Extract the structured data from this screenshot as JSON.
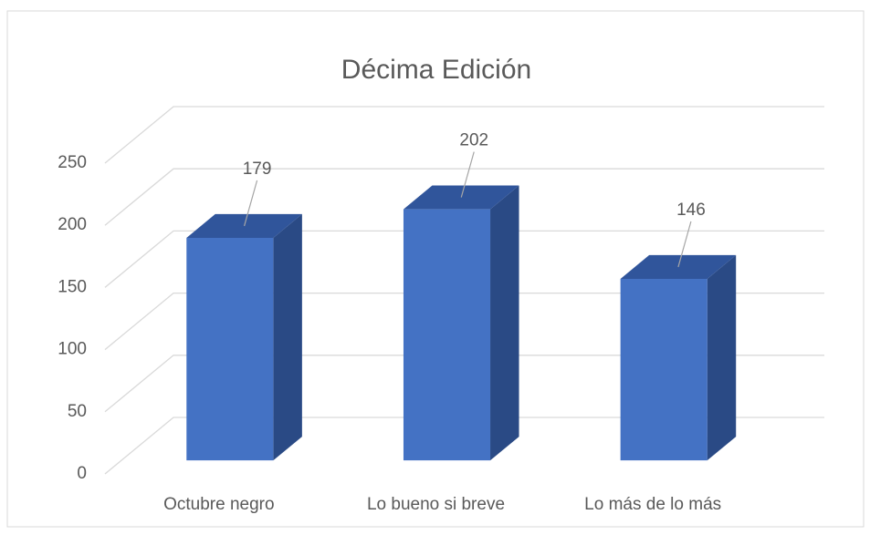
{
  "chart_data": {
    "type": "bar3d",
    "title": "Décima Edición",
    "categories": [
      "Octubre negro",
      "Lo bueno si breve",
      "Lo más de lo más"
    ],
    "values": [
      179,
      202,
      146
    ],
    "color": "#4472c4",
    "ylim": [
      0,
      250
    ],
    "yticks": [
      0,
      50,
      100,
      150,
      200,
      250
    ],
    "grid": true
  }
}
